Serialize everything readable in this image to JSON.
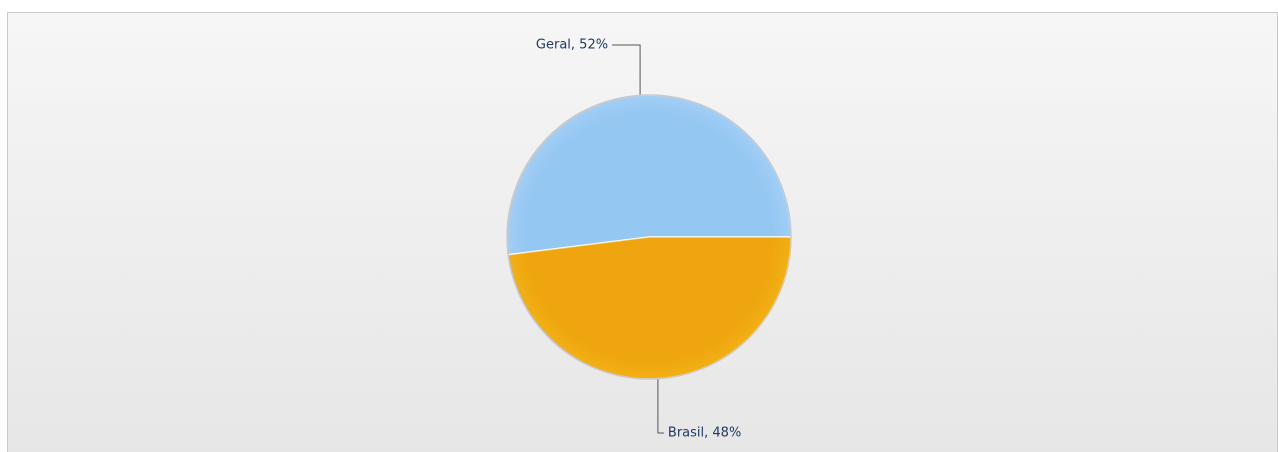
{
  "chart_data": {
    "type": "pie",
    "categories": [
      "Geral",
      "Brasil"
    ],
    "values": [
      52,
      48
    ],
    "value_labels": [
      "Geral, 52%",
      "Brasil, 48%"
    ],
    "colors": [
      "#b3d9f7",
      "#f5c01c"
    ]
  }
}
